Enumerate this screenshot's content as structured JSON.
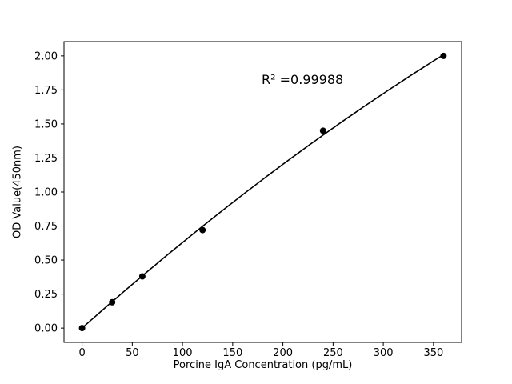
{
  "chart_data": {
    "type": "scatter",
    "title": "",
    "xlabel": "Porcine IgA Concentration (pg/mL)",
    "ylabel": "OD Value(450nm)",
    "annotation": "R² =0.99988",
    "x": [
      0,
      30,
      60,
      120,
      240,
      360
    ],
    "y": [
      0.0,
      0.19,
      0.38,
      0.72,
      1.45,
      2.0
    ],
    "fit": {
      "type": "quadratic",
      "coefficients": {
        "a0": 0,
        "a1": 0.00656,
        "a2": -2.72e-06
      }
    },
    "xticks": [
      "0",
      "50",
      "100",
      "150",
      "200",
      "250",
      "300",
      "350"
    ],
    "yticks": [
      "0.00",
      "0.25",
      "0.50",
      "0.75",
      "1.00",
      "1.25",
      "1.50",
      "1.75",
      "2.00"
    ],
    "xlim": [
      -18,
      378
    ],
    "ylim": [
      -0.105,
      2.105
    ],
    "grid": false,
    "legend": null,
    "marker_color": "#000000",
    "line_color": "#000000",
    "axis_color": "#000000",
    "background": "#ffffff"
  }
}
